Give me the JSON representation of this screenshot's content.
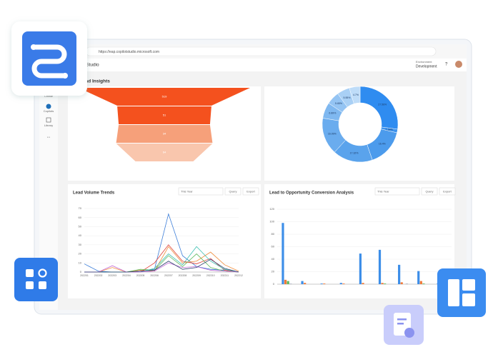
{
  "browser": {
    "url": "https://eap.copilotstudio.microsoft.com",
    "app_name": "ot Studio",
    "environment_label": "Environment",
    "environment": "Development",
    "help": "?"
  },
  "sidebar": {
    "items": [
      "Create",
      "Copilots",
      "Library",
      "..."
    ]
  },
  "dashboard_title": "Lead Insights",
  "chart_data": [
    {
      "type": "funnel",
      "values": [
        519,
        51,
        34,
        64
      ],
      "colors": [
        "#f4511e",
        "#f4511e",
        "#f6a07a",
        "#f9c6ad"
      ]
    },
    {
      "type": "pie",
      "values": [
        27.56,
        1.56,
        16.4,
        17.32,
        16.09,
        6.89,
        5.65,
        5.55,
        4.7
      ],
      "value_labels": [
        "27.56%",
        "1.56%",
        "16.4%",
        "17.32%",
        "16.09%",
        "6.89%",
        "5.65%",
        "5.55%",
        "4.7%"
      ],
      "colors": [
        "#2f8cf0",
        "#3d93ee",
        "#4c9bec",
        "#5aa3ec",
        "#6aacee",
        "#7fb8f0",
        "#94c4f3",
        "#a9d0f5",
        "#bedcf8"
      ]
    },
    {
      "type": "line",
      "title": "Lead Volume Trends",
      "controls": {
        "period": "This Year",
        "query": "Query",
        "export": "Export"
      },
      "categories": [
        "202201",
        "202202",
        "202203",
        "202204",
        "202205",
        "202206",
        "202207",
        "202208",
        "202209",
        "202210",
        "202211",
        "202212"
      ],
      "ylim": [
        0,
        70
      ],
      "yticks": [
        0,
        10,
        20,
        30,
        40,
        50,
        60,
        70
      ],
      "series": [
        {
          "color": "#3b7dd8",
          "values": [
            9,
            1,
            0,
            0,
            1,
            3,
            64,
            18,
            6,
            3,
            2,
            0
          ]
        },
        {
          "color": "#f08c3a",
          "values": [
            0,
            0,
            5,
            0,
            2,
            1,
            28,
            10,
            12,
            22,
            8,
            1
          ]
        },
        {
          "color": "#e0443c",
          "values": [
            0,
            0,
            0,
            0,
            0,
            10,
            30,
            12,
            9,
            15,
            2,
            0
          ]
        },
        {
          "color": "#5cb85c",
          "values": [
            0,
            0,
            0,
            0,
            3,
            2,
            18,
            6,
            20,
            5,
            1,
            0
          ]
        },
        {
          "color": "#3bbfb0",
          "values": [
            0,
            0,
            0,
            0,
            0,
            4,
            20,
            8,
            28,
            12,
            3,
            0
          ]
        },
        {
          "color": "#c36bd6",
          "values": [
            0,
            0,
            7,
            0,
            0,
            1,
            10,
            5,
            6,
            2,
            1,
            0
          ]
        },
        {
          "color": "#2c3e70",
          "values": [
            0,
            0,
            0,
            0,
            1,
            2,
            12,
            3,
            5,
            14,
            4,
            0
          ]
        }
      ]
    },
    {
      "type": "bar",
      "title": "Lead to Opportunity Conversion Analysis",
      "controls": {
        "period": "This Year",
        "query": "Query",
        "export": "Export"
      },
      "categories": [
        null,
        null,
        null,
        null,
        null,
        null,
        null,
        null,
        null
      ],
      "ylim": [
        0,
        120
      ],
      "yticks": [
        0,
        20,
        40,
        60,
        80,
        100,
        120
      ],
      "series": [
        {
          "color": "#3d8ee8",
          "values": [
            98,
            5,
            1,
            2,
            49,
            55,
            31,
            21,
            1
          ]
        },
        {
          "color": "#f07a3a",
          "values": [
            7,
            2,
            1,
            1,
            2,
            2,
            3,
            5,
            4
          ]
        },
        {
          "color": "#5cb85c",
          "values": [
            5,
            0,
            0,
            0,
            0,
            1,
            0,
            1,
            0
          ]
        },
        {
          "color": "#b0b8c4",
          "values": [
            1,
            0,
            0,
            0,
            0,
            0,
            1,
            0,
            0
          ]
        }
      ]
    }
  ]
}
